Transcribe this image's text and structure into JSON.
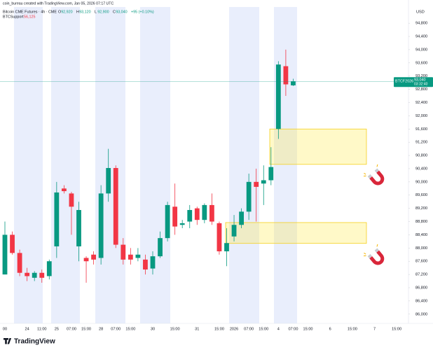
{
  "chart_data": {
    "type": "candlestick",
    "watermark": "coin_bureau created with TradingView.com, Jan 05, 2026 07:17 UTC",
    "title": "Bitcoin CME Futures · 4h · CME",
    "ohlc_legend": [
      {
        "key": "O",
        "value": "92,920"
      },
      {
        "key": "H",
        "value": "93,120"
      },
      {
        "key": "L",
        "value": "92,900"
      },
      {
        "key": "C",
        "value": "93,040"
      }
    ],
    "change": "+95 (+0.10%)",
    "indicator": {
      "name": "BTCSupport",
      "value": "56,125"
    },
    "currency": "USD",
    "brand": "TradingView",
    "up_color": "#089981",
    "down_color": "#f23645",
    "categories": [
      "00",
      null,
      null,
      "24",
      null,
      "11:00",
      null,
      "25",
      null,
      "07:00",
      null,
      "15:00",
      null,
      "28",
      null,
      "07:00",
      null,
      "15:00",
      null,
      null,
      "30",
      null,
      null,
      "15:00",
      null,
      null,
      "31",
      null,
      null,
      "15:00",
      null,
      "2026",
      null,
      "07:00",
      null,
      "15:00",
      null,
      "4",
      null,
      "07:00",
      null,
      "15:00",
      null,
      null,
      "6",
      null,
      null,
      "15:00",
      null,
      null,
      "7",
      null,
      null,
      "15:00"
    ],
    "open": [
      87200,
      88400,
      87850,
      87250,
      87100,
      87250,
      87150,
      88050,
      89800,
      89650,
      88050,
      87700,
      87800,
      87700,
      89650,
      90420,
      88100,
      87800,
      87700,
      87650,
      87380,
      87750,
      88300,
      89250,
      88700,
      88800,
      89200,
      88850,
      89300,
      88750,
      87900,
      88350,
      88700,
      89100,
      90000,
      89950,
      90050,
      91600,
      93500,
      92920,
      null,
      null,
      null,
      null,
      null,
      null,
      null,
      null,
      null,
      null,
      null,
      null,
      null,
      null
    ],
    "high": [
      88800,
      88500,
      87950,
      87400,
      87300,
      87350,
      87650,
      90000,
      89900,
      89700,
      89400,
      87750,
      87900,
      89900,
      91000,
      90500,
      88300,
      88000,
      88000,
      87800,
      87900,
      88500,
      89400,
      89950,
      88850,
      89300,
      89250,
      89350,
      89650,
      88800,
      88600,
      89000,
      89200,
      90250,
      90400,
      90500,
      91050,
      93650,
      94000,
      93120,
      null,
      null,
      null,
      null,
      null,
      null,
      null,
      null,
      null,
      null,
      null,
      null,
      null,
      null
    ],
    "low": [
      87200,
      87800,
      87150,
      87000,
      87000,
      86950,
      87050,
      87700,
      89650,
      88400,
      87600,
      86950,
      87500,
      87500,
      89400,
      88000,
      87500,
      87500,
      87600,
      87200,
      87200,
      87700,
      88200,
      88400,
      88600,
      88600,
      88700,
      88750,
      88700,
      87800,
      87450,
      88200,
      88600,
      88850,
      88800,
      89300,
      89900,
      91300,
      92600,
      92900,
      null,
      null,
      null,
      null,
      null,
      null,
      null,
      null,
      null,
      null,
      null,
      null,
      null,
      null
    ],
    "close": [
      88400,
      87850,
      87250,
      87150,
      87250,
      87100,
      87600,
      89680,
      89720,
      89250,
      89150,
      87600,
      87650,
      89650,
      90420,
      88100,
      87650,
      87650,
      87800,
      87350,
      87750,
      88300,
      89300,
      88650,
      88750,
      89150,
      88850,
      89300,
      88800,
      87900,
      88150,
      88700,
      89100,
      90000,
      89850,
      90050,
      90450,
      93550,
      92950,
      93040,
      null,
      null,
      null,
      null,
      null,
      null,
      null,
      null,
      null,
      null,
      null,
      null,
      null,
      null
    ],
    "zones": [
      {
        "low": 90530,
        "high": 91600
      },
      {
        "low": 88140,
        "high": 88770
      }
    ],
    "price_badge": {
      "symbol": "BTCF2026",
      "price": {
        "value": 93040,
        "label": "93,040"
      },
      "countdown": "03:32:40"
    },
    "ylim": [
      85720,
      95290
    ],
    "yticks": [
      {
        "value": 86000,
        "label": "86,000"
      },
      {
        "value": 86400,
        "label": "86,400"
      },
      {
        "value": 86800,
        "label": "86,800"
      },
      {
        "value": 87200,
        "label": "87,200"
      },
      {
        "value": 87600,
        "label": "87,600"
      },
      {
        "value": 88000,
        "label": "88,000"
      },
      {
        "value": 88400,
        "label": "88,400"
      },
      {
        "value": 88800,
        "label": "88,800"
      },
      {
        "value": 89200,
        "label": "89,200"
      },
      {
        "value": 89600,
        "label": "89,600"
      },
      {
        "value": 90000,
        "label": "90,000"
      },
      {
        "value": 90400,
        "label": "90,400"
      },
      {
        "value": 90800,
        "label": "90,800"
      },
      {
        "value": 91200,
        "label": "91,200"
      },
      {
        "value": 91600,
        "label": "91,600"
      },
      {
        "value": 92000,
        "label": "92,000"
      },
      {
        "value": 92400,
        "label": "92,400"
      },
      {
        "value": 92800,
        "label": "92,800"
      },
      {
        "value": 93200,
        "label": "93,200"
      },
      {
        "value": 93600,
        "label": "93,600"
      },
      {
        "value": 94000,
        "label": "94,000"
      },
      {
        "value": 94400,
        "label": "94,400"
      },
      {
        "value": 94800,
        "label": "94,800"
      }
    ],
    "grid": false
  }
}
